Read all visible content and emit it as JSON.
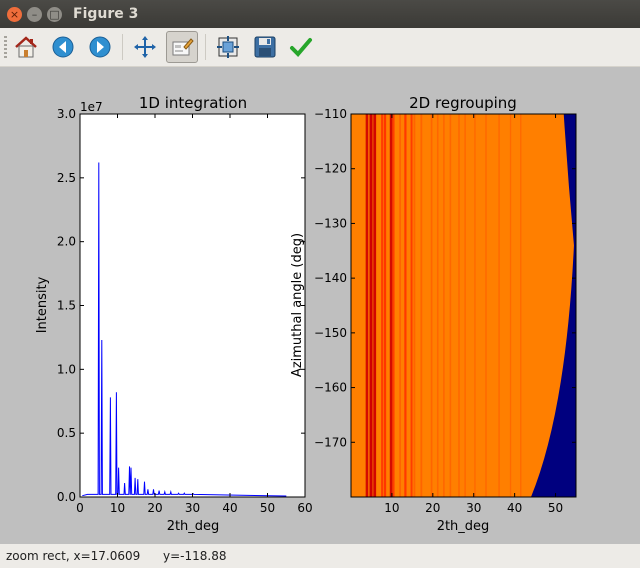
{
  "window": {
    "title": "Figure 3",
    "close_glyph": "×",
    "min_glyph": "–",
    "max_glyph": "□"
  },
  "toolbar": {
    "buttons": [
      {
        "name": "home",
        "icon": "home-icon"
      },
      {
        "name": "back",
        "icon": "back-arrow-icon"
      },
      {
        "name": "forward",
        "icon": "forward-arrow-icon"
      },
      {
        "name": "pan",
        "icon": "pan-icon"
      },
      {
        "name": "zoom",
        "icon": "zoom-rect-icon",
        "active": true
      },
      {
        "name": "subplots",
        "icon": "subplots-icon"
      },
      {
        "name": "save",
        "icon": "save-icon"
      },
      {
        "name": "apply",
        "icon": "checkmark-icon"
      }
    ]
  },
  "status": {
    "mode": "zoom rect, x=17.0609",
    "y": "y=-118.88"
  },
  "colors": {
    "line": "#0000ff",
    "low": "#00007f",
    "mid": "#ff7f00",
    "high": "#ff2a00"
  },
  "chart_data": [
    {
      "type": "line",
      "title": "1D integration",
      "xlabel": "2th_deg",
      "ylabel": "Intensity",
      "xlim": [
        0,
        60
      ],
      "ylim": [
        0,
        30000000
      ],
      "offset_text": "1e7",
      "xticks": [
        "0",
        "10",
        "20",
        "30",
        "40",
        "50",
        "60"
      ],
      "yticks": [
        "0.0",
        "0.5",
        "1.0",
        "1.5",
        "2.0",
        "2.5",
        "3.0"
      ],
      "baseline": 200000,
      "x_end": 55,
      "peaks": [
        {
          "x": 5.0,
          "y": 26200000
        },
        {
          "x": 5.8,
          "y": 12300000
        },
        {
          "x": 8.1,
          "y": 7800000
        },
        {
          "x": 9.7,
          "y": 8200000
        },
        {
          "x": 10.3,
          "y": 2300000
        },
        {
          "x": 11.9,
          "y": 1100000
        },
        {
          "x": 13.2,
          "y": 2400000
        },
        {
          "x": 13.6,
          "y": 2300000
        },
        {
          "x": 14.7,
          "y": 1500000
        },
        {
          "x": 15.4,
          "y": 1400000
        },
        {
          "x": 17.2,
          "y": 1200000
        },
        {
          "x": 18.1,
          "y": 600000
        },
        {
          "x": 19.6,
          "y": 600000
        },
        {
          "x": 21.1,
          "y": 500000
        },
        {
          "x": 22.6,
          "y": 400000
        },
        {
          "x": 24.2,
          "y": 400000
        },
        {
          "x": 26.3,
          "y": 300000
        },
        {
          "x": 27.8,
          "y": 300000
        },
        {
          "x": 30.2,
          "y": 250000
        }
      ]
    },
    {
      "type": "heatmap",
      "title": "2D regrouping",
      "xlabel": "2th_deg",
      "ylabel": "Azimuthal angle (deg)",
      "xlim": [
        0,
        55
      ],
      "ylim": [
        -180,
        -110
      ],
      "xticks": [
        "10",
        "20",
        "30",
        "40",
        "50"
      ],
      "yticks": [
        "−170",
        "−160",
        "−150",
        "−140",
        "−130",
        "−120",
        "−110"
      ],
      "edge_x_start": 44,
      "edge_x_bottom": 44,
      "edge_x_top": 52,
      "edge_x_peak": 54.5,
      "edge_peak_angle": -134,
      "lines": [
        {
          "x": 3.9,
          "s": 0.8
        },
        {
          "x": 4.9,
          "s": 1.0
        },
        {
          "x": 5.8,
          "s": 0.9
        },
        {
          "x": 7.6,
          "s": 0.5
        },
        {
          "x": 8.3,
          "s": 0.7
        },
        {
          "x": 9.8,
          "s": 0.8
        },
        {
          "x": 10.4,
          "s": 0.5
        },
        {
          "x": 12.0,
          "s": 0.4
        },
        {
          "x": 13.3,
          "s": 0.6
        },
        {
          "x": 14.8,
          "s": 0.5
        },
        {
          "x": 15.5,
          "s": 0.4
        },
        {
          "x": 17.2,
          "s": 0.4
        },
        {
          "x": 19.7,
          "s": 0.35
        },
        {
          "x": 21.2,
          "s": 0.3
        },
        {
          "x": 22.7,
          "s": 0.3
        },
        {
          "x": 24.3,
          "s": 0.3
        },
        {
          "x": 26.4,
          "s": 0.25
        },
        {
          "x": 27.9,
          "s": 0.25
        },
        {
          "x": 30.3,
          "s": 0.2
        },
        {
          "x": 33.0,
          "s": 0.2
        },
        {
          "x": 36.2,
          "s": 0.2
        },
        {
          "x": 39.0,
          "s": 0.15
        },
        {
          "x": 41.5,
          "s": 0.15
        }
      ]
    }
  ]
}
